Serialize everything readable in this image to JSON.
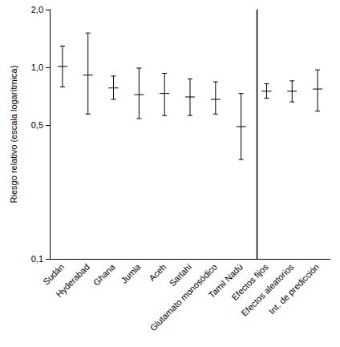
{
  "chart_data": {
    "type": "errorbar",
    "y_label": "Riesgo relativo (escala logarítmica)",
    "categories": [
      "Sudán",
      "Hyderabad",
      "Ghana",
      "Jumla",
      "Aceh",
      "Sarlahi",
      "Glutamato monosódico",
      "Tamil Nadú",
      "Efectos fijos",
      "Efectos aleatorios",
      "Int. de predicción"
    ],
    "values": [
      1.01,
      0.91,
      0.78,
      0.72,
      0.73,
      0.7,
      0.68,
      0.49,
      0.75,
      0.75,
      0.77
    ],
    "lower": [
      0.79,
      0.57,
      0.68,
      0.54,
      0.56,
      0.56,
      0.57,
      0.33,
      0.69,
      0.66,
      0.59
    ],
    "upper": [
      1.29,
      1.51,
      0.9,
      0.99,
      0.93,
      0.87,
      0.84,
      0.73,
      0.82,
      0.85,
      0.97
    ],
    "color": "#000000",
    "log": "y",
    "ylim": [
      0.1,
      2
    ],
    "yticks": [
      {
        "value": 0.1,
        "label": "0,1"
      },
      {
        "value": 0.5,
        "label": "0,5"
      },
      {
        "value": 1,
        "label": "1,0"
      },
      {
        "value": 2,
        "label": "2,0"
      }
    ],
    "grid": false
  }
}
